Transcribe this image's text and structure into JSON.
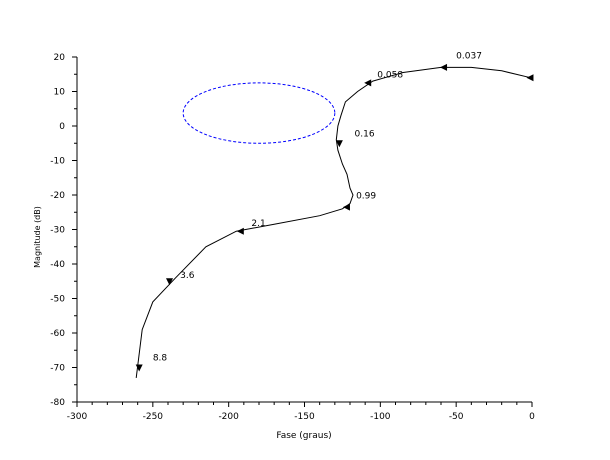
{
  "chart_data": {
    "type": "line",
    "title": "",
    "xlabel": "Fase (graus)",
    "ylabel": "Magnitude (dB)",
    "xlim": [
      -300,
      0
    ],
    "ylim": [
      -80,
      20
    ],
    "xticks": [
      -300,
      -250,
      -200,
      -150,
      -100,
      -50,
      0
    ],
    "yticks": [
      -80,
      -70,
      -60,
      -50,
      -40,
      -30,
      -20,
      -10,
      0,
      10,
      20
    ],
    "grid": false,
    "series": [
      {
        "style": "solid",
        "color": "#000000",
        "x": [
          -1,
          -20,
          -40,
          -60,
          -85,
          -105,
          -115,
          -123,
          -126,
          -128,
          -129,
          -128,
          -125,
          -122,
          -120,
          -118,
          -120,
          -125,
          -140,
          -170,
          -195,
          -215,
          -235,
          -250,
          -257,
          -261
        ],
        "y": [
          14,
          16,
          17,
          17,
          15.5,
          13,
          10,
          7,
          3,
          0,
          -4,
          -7,
          -11,
          -14,
          -18,
          -20,
          -22.5,
          -24,
          -26,
          -28.5,
          -30.5,
          -35,
          -44,
          -51,
          -59,
          -73
        ]
      },
      {
        "style": "dashed",
        "color": "#0000ff",
        "shape": "ellipse",
        "x": [
          -180.0,
          -163.2,
          -141.7,
          -130.0,
          -141.7,
          -163.2,
          -180.0,
          -196.8,
          -218.3,
          -230.0,
          -218.3,
          -196.8,
          -180.0
        ],
        "y": [
          12.5,
          11.2,
          7.0,
          3.8,
          0.6,
          -3.6,
          -5.0,
          -3.6,
          0.6,
          3.8,
          7.0,
          11.2,
          12.5
        ]
      }
    ],
    "arrows": [
      {
        "x": -1,
        "y": 14,
        "dir": "left"
      },
      {
        "x": -58,
        "y": 17,
        "dir": "left"
      },
      {
        "x": -108,
        "y": 12.5,
        "dir": "left"
      },
      {
        "x": -127,
        "y": -5,
        "dir": "down"
      },
      {
        "x": -122,
        "y": -23.5,
        "dir": "left"
      },
      {
        "x": -192,
        "y": -30.5,
        "dir": "left"
      },
      {
        "x": -239,
        "y": -45,
        "dir": "down"
      },
      {
        "x": -259,
        "y": -70,
        "dir": "down"
      }
    ],
    "annotations": [
      {
        "text": "0.037",
        "x": -50,
        "y": 19.5
      },
      {
        "text": "0.058",
        "x": -102,
        "y": 14
      },
      {
        "text": "0.16",
        "x": -117,
        "y": -3
      },
      {
        "text": "0.99",
        "x": -116,
        "y": -21
      },
      {
        "text": "2.1",
        "x": -185,
        "y": -29
      },
      {
        "text": "3.6",
        "x": -232,
        "y": -44
      },
      {
        "text": "8.8",
        "x": -250,
        "y": -68
      }
    ]
  }
}
